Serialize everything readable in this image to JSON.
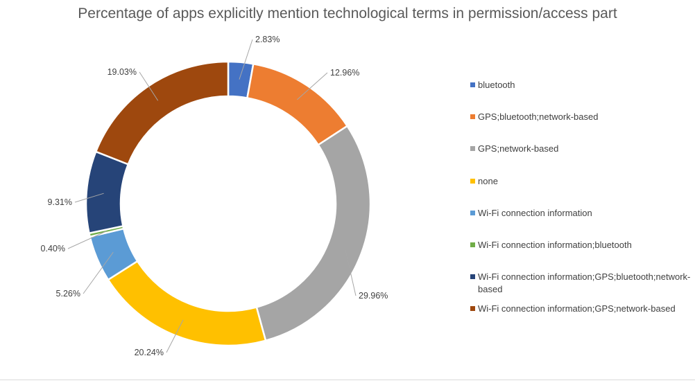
{
  "chart_data": {
    "type": "pie",
    "variant": "doughnut",
    "title": "Percentage of apps explicitly mention technological terms in permission/access part",
    "legend_position": "right",
    "slices": [
      {
        "name": "bluetooth",
        "value": 2.83,
        "label": "2.83%",
        "color": "#4472C4"
      },
      {
        "name": "GPS;bluetooth;network-based",
        "value": 12.96,
        "label": "12.96%",
        "color": "#ED7D31"
      },
      {
        "name": "GPS;network-based",
        "value": 29.96,
        "label": "29.96%",
        "color": "#A5A5A5"
      },
      {
        "name": "none",
        "value": 20.24,
        "label": "20.24%",
        "color": "#FFC000"
      },
      {
        "name": "Wi-Fi connection information",
        "value": 5.26,
        "label": "5.26%",
        "color": "#5B9BD5"
      },
      {
        "name": "Wi-Fi connection information;bluetooth",
        "value": 0.4,
        "label": "0.40%",
        "color": "#70AD47"
      },
      {
        "name": "Wi-Fi connection information;GPS;bluetooth;network-based",
        "value": 9.31,
        "label": "9.31%",
        "color": "#264478"
      },
      {
        "name": "Wi-Fi connection information;GPS;network-based",
        "value": 19.03,
        "label": "19.03%",
        "color": "#9E480E"
      }
    ]
  }
}
